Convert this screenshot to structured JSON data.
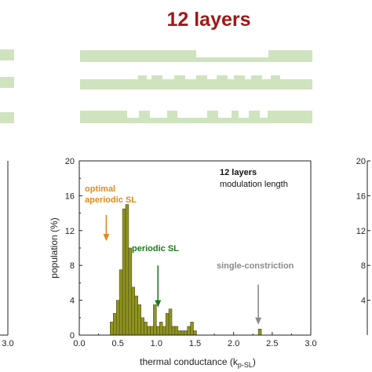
{
  "figure": {
    "title": "12 layers",
    "title_color": "#a01818",
    "structure_color": "#cfe3bf"
  },
  "chart_data": {
    "type": "bar",
    "title": "",
    "xlabel_main": "thermal conductance (k",
    "xlabel_sub": "p-SL",
    "xlabel_end": ")",
    "ylabel": "population (%)",
    "xlim": [
      0.0,
      3.0
    ],
    "ylim": [
      0,
      20
    ],
    "x_ticks": [
      "0.0",
      "0.5",
      "1.0",
      "1.5",
      "2.0",
      "2.5",
      "3.0"
    ],
    "y_ticks": [
      "0",
      "4",
      "8",
      "12",
      "16",
      "20"
    ],
    "bar_width": 0.04,
    "bar_color": "#8f9420",
    "bar_edge_color": "#3f3f10",
    "bins": [
      0.4,
      0.44,
      0.48,
      0.52,
      0.56,
      0.6,
      0.64,
      0.68,
      0.72,
      0.76,
      0.8,
      0.84,
      0.88,
      0.92,
      0.96,
      1.0,
      1.04,
      1.08,
      1.12,
      1.16,
      1.2,
      1.24,
      1.28,
      1.32,
      1.36,
      1.4,
      1.44,
      1.48,
      2.32
    ],
    "values": [
      1.5,
      2.5,
      4.0,
      7.5,
      14.5,
      15.0,
      10.0,
      5.5,
      4.5,
      3.5,
      2.0,
      1.5,
      1.0,
      1.0,
      3.5,
      1.0,
      1.5,
      1.0,
      2.5,
      3.0,
      1.0,
      1.0,
      0.5,
      0.5,
      0.5,
      1.0,
      1.5,
      0.5,
      0.7
    ],
    "legend": {
      "bold": "12 layers",
      "text": "modulation length",
      "placement": "top-right"
    },
    "annotations": [
      {
        "lines": [
          "optimal",
          "aperiodic SL"
        ],
        "color": "#e08a1e",
        "arrow_x": 0.35,
        "arrow_from": 13.8,
        "arrow_to": 10.8
      },
      {
        "lines": [
          "periodic SL"
        ],
        "color": "#1a7a1a",
        "arrow_x": 1.02,
        "arrow_from": 8.0,
        "arrow_to": 3.2
      },
      {
        "lines": [
          "single-constriction"
        ],
        "color": "#8a8a8a",
        "arrow_x": 2.32,
        "arrow_from": 5.8,
        "arrow_to": 1.2
      }
    ]
  },
  "side_panels": {
    "left_tick": "3.0",
    "right_ticks": [
      "20",
      "16",
      "12",
      "8",
      "4"
    ]
  }
}
